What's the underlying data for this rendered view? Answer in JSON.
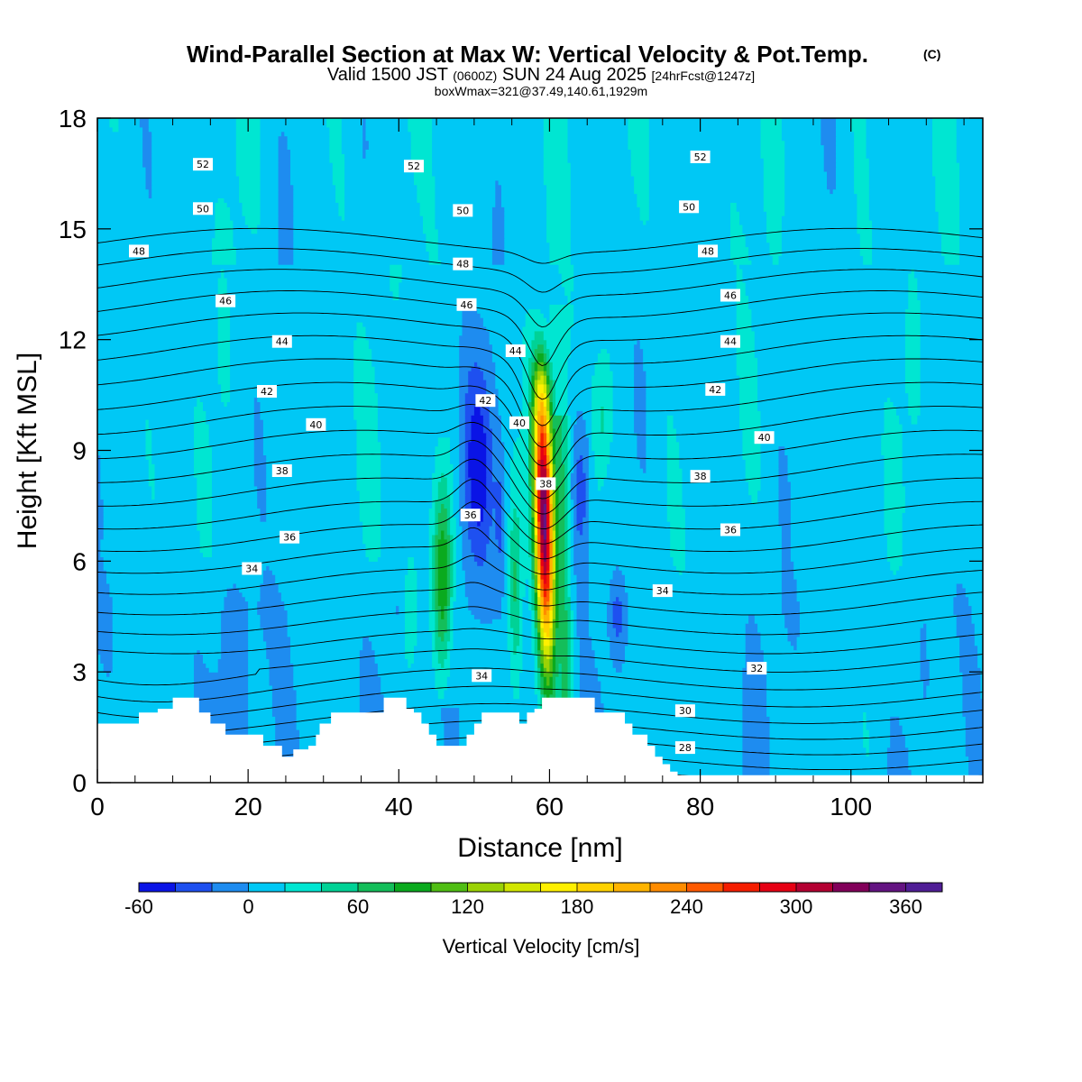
{
  "chart_data": {
    "type": "heatmap",
    "title": "Wind-Parallel Section at Max W: Vertical Velocity & Pot.Temp.",
    "copyright_mark": "(C)",
    "subtitle_valid": "Valid 1500 JST",
    "subtitle_utc": "(0600Z)",
    "subtitle_date": "SUN 24 Aug 2025",
    "subtitle_forecast": "[24hrFcst@1247z]",
    "subtitle_box": "boxWmax=321@37.49,140.61,1929m",
    "xlabel": "Distance [nm]",
    "ylabel": "Height [Kft MSL]",
    "xlim": [
      0,
      117.5
    ],
    "ylim": [
      0,
      18
    ],
    "x_ticks": [
      0,
      20,
      40,
      60,
      80,
      100
    ],
    "y_ticks": [
      0,
      3,
      6,
      9,
      12,
      15,
      18
    ],
    "colorbar": {
      "label": "Vertical Velocity [cm/s]",
      "min": -60,
      "max": 380,
      "step": 20,
      "tick_values": [
        -60,
        0,
        60,
        120,
        180,
        240,
        300,
        360
      ],
      "colors": [
        "#0a14e6",
        "#1e50f0",
        "#1e8cf0",
        "#00c8f5",
        "#00e6d2",
        "#00d296",
        "#14be5a",
        "#0aaa1e",
        "#50be14",
        "#9bd205",
        "#d2e600",
        "#fff000",
        "#ffd200",
        "#ffb400",
        "#ff8c00",
        "#ff5a00",
        "#f51e00",
        "#e60014",
        "#b40032",
        "#82005a",
        "#641482",
        "#501e96"
      ]
    },
    "updraft_cores": [
      {
        "x": 59.5,
        "z_bottom": 1.8,
        "z_top": 12.7,
        "w_max": 321
      },
      {
        "x": 46.0,
        "z_bottom": 2.5,
        "z_top": 9.2,
        "w_max": 100
      },
      {
        "x": 41.5,
        "z_bottom": 2.5,
        "z_top": 6.0,
        "w_max": 40
      }
    ],
    "theta_contour_labels": [
      {
        "text": "52",
        "x": 14,
        "y": 16.75
      },
      {
        "text": "52",
        "x": 42,
        "y": 16.7
      },
      {
        "text": "52",
        "x": 80,
        "y": 16.95
      },
      {
        "text": "50",
        "x": 14,
        "y": 15.55
      },
      {
        "text": "50",
        "x": 48.5,
        "y": 15.5
      },
      {
        "text": "50",
        "x": 78.5,
        "y": 15.6
      },
      {
        "text": "48",
        "x": 5.5,
        "y": 14.4
      },
      {
        "text": "48",
        "x": 48.5,
        "y": 14.05
      },
      {
        "text": "48",
        "x": 81,
        "y": 14.4
      },
      {
        "text": "46",
        "x": 17,
        "y": 13.05
      },
      {
        "text": "46",
        "x": 49,
        "y": 12.95
      },
      {
        "text": "46",
        "x": 84,
        "y": 13.2
      },
      {
        "text": "44",
        "x": 24.5,
        "y": 11.95
      },
      {
        "text": "44",
        "x": 55.5,
        "y": 11.7
      },
      {
        "text": "44",
        "x": 84,
        "y": 11.95
      },
      {
        "text": "42",
        "x": 22.5,
        "y": 10.6
      },
      {
        "text": "42",
        "x": 51.5,
        "y": 10.35
      },
      {
        "text": "42",
        "x": 82,
        "y": 10.65
      },
      {
        "text": "40",
        "x": 29,
        "y": 9.7
      },
      {
        "text": "40",
        "x": 56,
        "y": 9.75
      },
      {
        "text": "40",
        "x": 88.5,
        "y": 9.35
      },
      {
        "text": "38",
        "x": 24.5,
        "y": 8.45
      },
      {
        "text": "38",
        "x": 59.5,
        "y": 8.1
      },
      {
        "text": "38",
        "x": 80,
        "y": 8.3
      },
      {
        "text": "36",
        "x": 25.5,
        "y": 6.65
      },
      {
        "text": "36",
        "x": 49.5,
        "y": 7.25
      },
      {
        "text": "36",
        "x": 84,
        "y": 6.85
      },
      {
        "text": "34",
        "x": 20.5,
        "y": 5.8
      },
      {
        "text": "34",
        "x": 51,
        "y": 2.9
      },
      {
        "text": "34",
        "x": 75,
        "y": 5.2
      },
      {
        "text": "32",
        "x": 87.5,
        "y": 3.1
      },
      {
        "text": "30",
        "x": 78,
        "y": 1.95
      },
      {
        "text": "28",
        "x": 78,
        "y": 0.95
      }
    ],
    "terrain_kft": [
      [
        0,
        1.6
      ],
      [
        5,
        1.6
      ],
      [
        5.5,
        1.9
      ],
      [
        8,
        2.0
      ],
      [
        10,
        2.3
      ],
      [
        13,
        2.3
      ],
      [
        13.5,
        1.9
      ],
      [
        14.5,
        1.9
      ],
      [
        15,
        1.6
      ],
      [
        16,
        1.6
      ],
      [
        17,
        1.3
      ],
      [
        19,
        1.3
      ],
      [
        21,
        1.3
      ],
      [
        22,
        1.0
      ],
      [
        24,
        1.0
      ],
      [
        24.5,
        0.7
      ],
      [
        26,
        0.9
      ],
      [
        28,
        1.0
      ],
      [
        29,
        1.3
      ],
      [
        29.5,
        1.6
      ],
      [
        31,
        1.9
      ],
      [
        37,
        1.9
      ],
      [
        38,
        2.3
      ],
      [
        40,
        2.3
      ],
      [
        41,
        2.0
      ],
      [
        42,
        1.9
      ],
      [
        43,
        1.6
      ],
      [
        44,
        1.3
      ],
      [
        45,
        1.0
      ],
      [
        48,
        1.0
      ],
      [
        49,
        1.3
      ],
      [
        50,
        1.6
      ],
      [
        51,
        1.9
      ],
      [
        55,
        1.9
      ],
      [
        56,
        1.6
      ],
      [
        57,
        1.9
      ],
      [
        58,
        2.0
      ],
      [
        59,
        2.3
      ],
      [
        65,
        2.3
      ],
      [
        66,
        1.9
      ],
      [
        68,
        1.9
      ],
      [
        70,
        1.6
      ],
      [
        71,
        1.3
      ],
      [
        73,
        1.0
      ],
      [
        74,
        0.7
      ],
      [
        75,
        0.5
      ],
      [
        76,
        0.3
      ],
      [
        77,
        0.2
      ],
      [
        117.5,
        0.2
      ]
    ]
  }
}
